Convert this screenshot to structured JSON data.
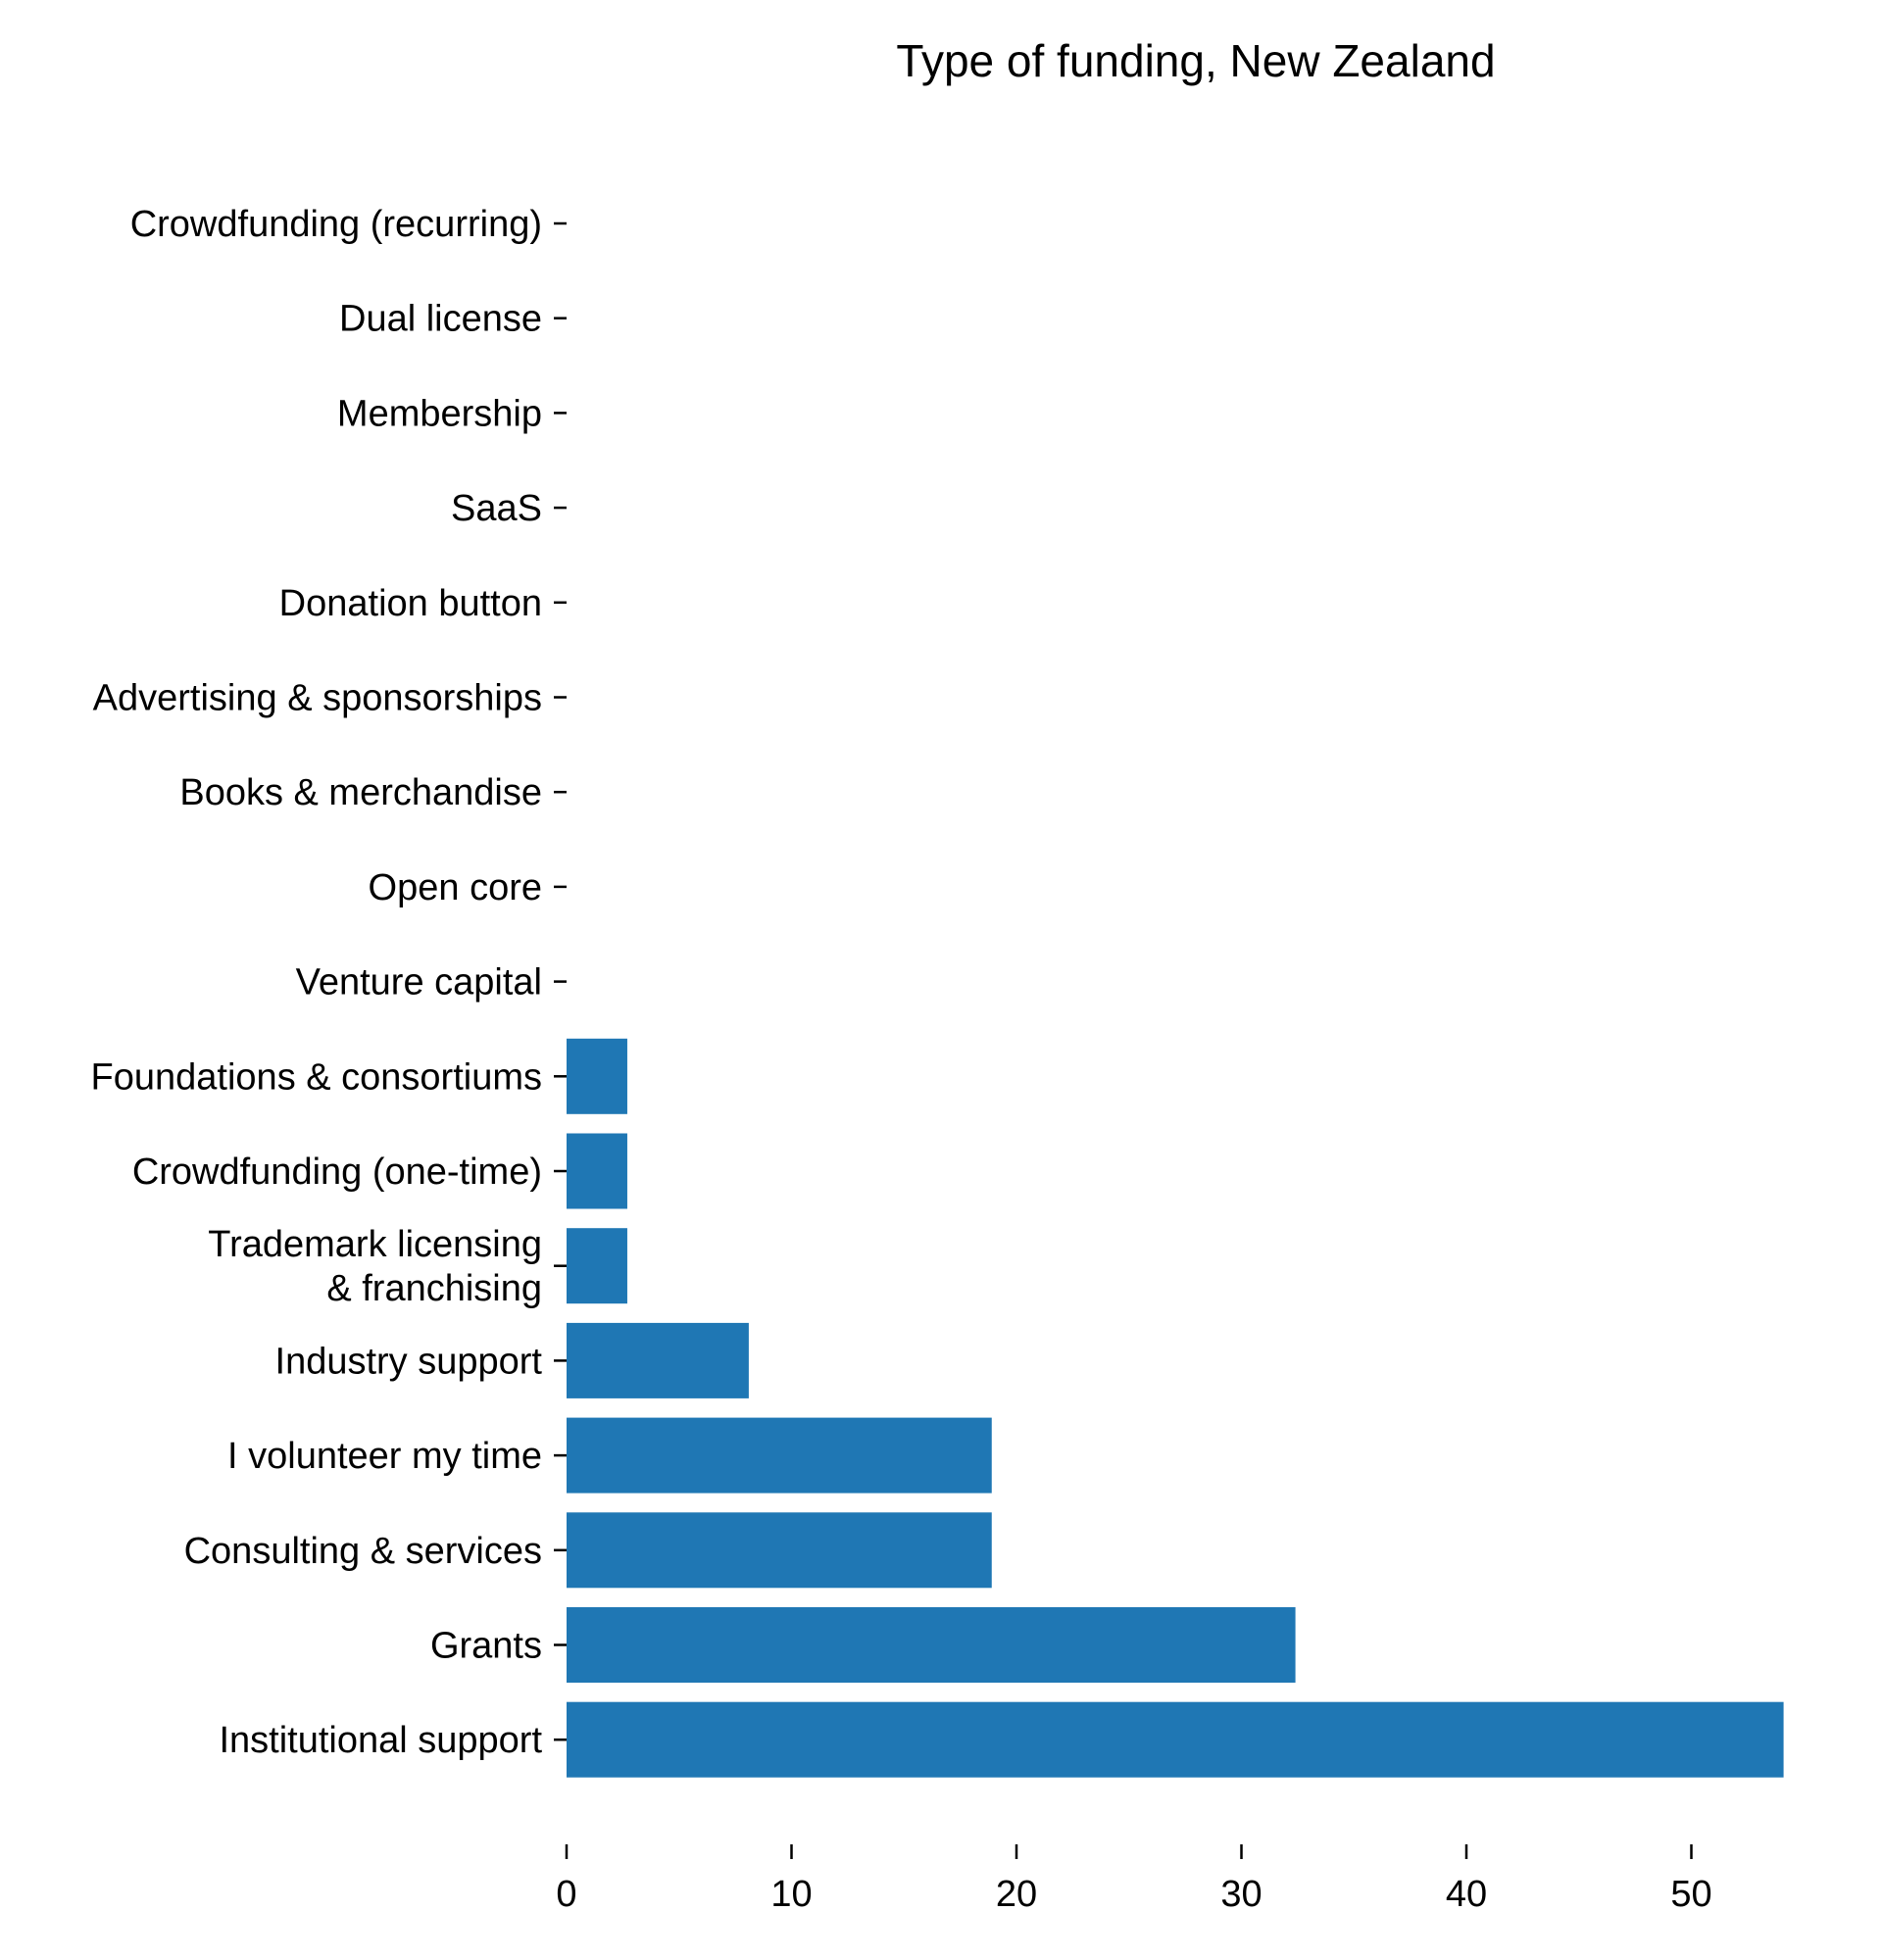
{
  "chart_data": {
    "type": "bar",
    "orientation": "horizontal",
    "title": "Type of funding, New Zealand",
    "xlabel": "",
    "ylabel": "",
    "categories": [
      "Crowdfunding (recurring)",
      "Dual license",
      "Membership",
      "SaaS",
      "Donation button",
      "Advertising & sponsorships",
      "Books & merchandise",
      "Open core",
      "Venture capital",
      "Foundations & consortiums",
      "Crowdfunding (one-time)",
      "Trademark licensing\n& franchising",
      "Industry support",
      "I volunteer my time",
      "Consulting & services",
      "Grants",
      "Institutional support"
    ],
    "values": [
      0,
      0,
      0,
      0,
      0,
      0,
      0,
      0,
      0,
      2.7,
      2.7,
      2.7,
      8.1,
      18.9,
      18.9,
      32.4,
      54.1
    ],
    "xlim": [
      0,
      56
    ],
    "x_ticks": [
      0,
      10,
      20,
      30,
      40,
      50
    ],
    "grid": false,
    "bar_color": "#1f77b4"
  }
}
